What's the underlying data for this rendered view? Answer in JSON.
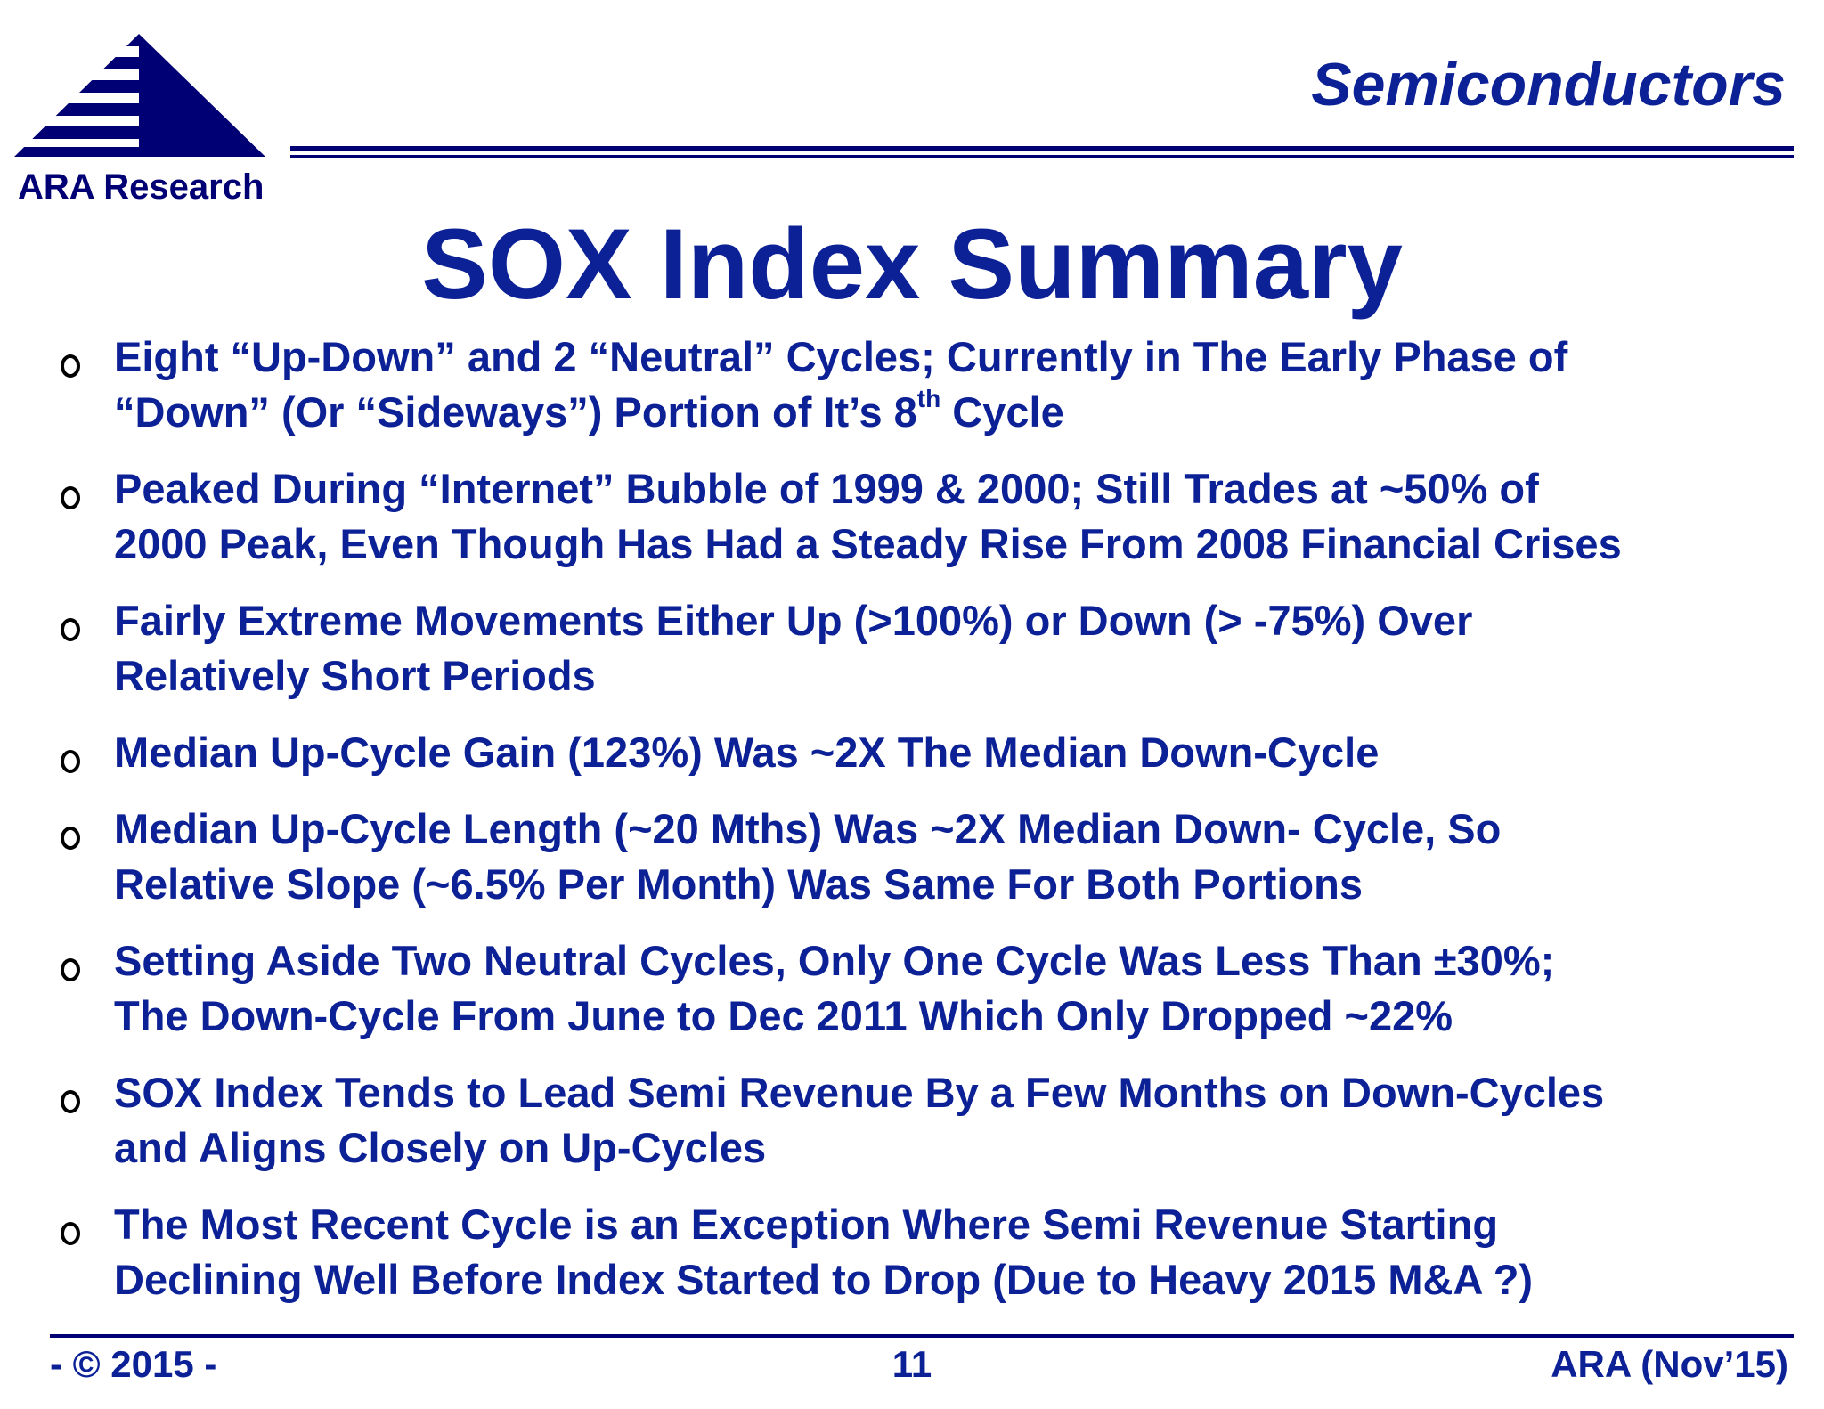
{
  "logo": {
    "text": "ARA Research"
  },
  "header": {
    "section_title": "Semiconductors"
  },
  "slide": {
    "title": "SOX Index Summary"
  },
  "bullets": [
    {
      "text": "Eight “Up-Down” and 2 “Neutral” Cycles; Currently in The Early Phase of\n“Down” (Or “Sideways”) Portion of It’s 8",
      "sup": "th",
      "text_after": " Cycle"
    },
    {
      "text": "Peaked During “Internet” Bubble of 1999 & 2000; Still Trades at ~50% of\n2000 Peak, Even Though Has Had a Steady Rise From 2008 Financial Crises"
    },
    {
      "text": "Fairly Extreme Movements Either Up (>100%) or Down (> -75%) Over\nRelatively Short Periods"
    },
    {
      "text": "Median Up-Cycle Gain (123%) Was ~2X The Median Down-Cycle"
    },
    {
      "text": "Median Up-Cycle Length (~20 Mths) Was ~2X Median Down- Cycle, So\nRelative Slope (~6.5% Per Month) Was Same For Both Portions"
    },
    {
      "text": "Setting Aside Two Neutral Cycles, Only One Cycle Was Less Than ±30%;\nThe Down-Cycle From June to Dec 2011 Which Only Dropped ~22%"
    },
    {
      "text": "SOX Index Tends to Lead Semi Revenue By a Few Months on Down-Cycles\nand Aligns Closely on Up-Cycles"
    },
    {
      "text": "The Most Recent Cycle is an Exception Where Semi Revenue Starting\nDeclining Well Before Index Started to Drop (Due to Heavy 2015 M&A ?)"
    }
  ],
  "footer": {
    "left": "- © 2015 -",
    "page_number": "11",
    "right": "ARA (Nov’15)"
  },
  "colors": {
    "text": "#0c2196",
    "rules": "#000074",
    "logo": "#000074"
  },
  "icons": {
    "bullet": "hollow-circle-bullet-icon",
    "logo": "striped-pyramid-logo-icon"
  }
}
